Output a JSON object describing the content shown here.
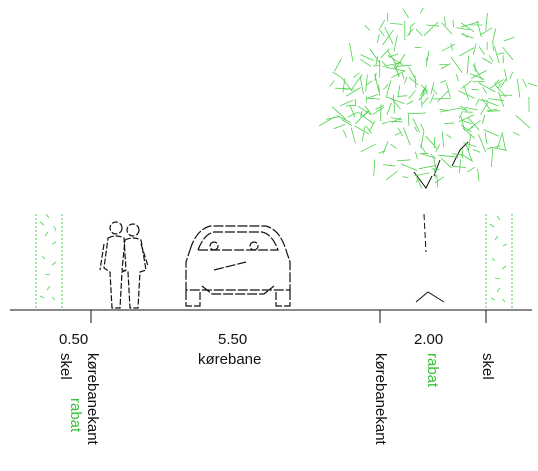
{
  "colors": {
    "line": "#111111",
    "green": "#35c135",
    "vegetation": "#4cd24c"
  },
  "icons": {
    "tree": "tree-canopy-icon",
    "pedestrians": "pedestrians-icon",
    "car": "car-front-icon",
    "hedge": "hedge-icon"
  },
  "labels": {
    "dim_left": "0.50",
    "dim_center": "5.50",
    "dim_right": "2.00",
    "korebane": "kørebane",
    "skel_left": "skel",
    "korebanekant_left": "kørebanekant",
    "rabat_left": "rabat",
    "korebanekant_right": "kørebanekant",
    "rabat_right": "rabat",
    "skel_right": "skel"
  }
}
